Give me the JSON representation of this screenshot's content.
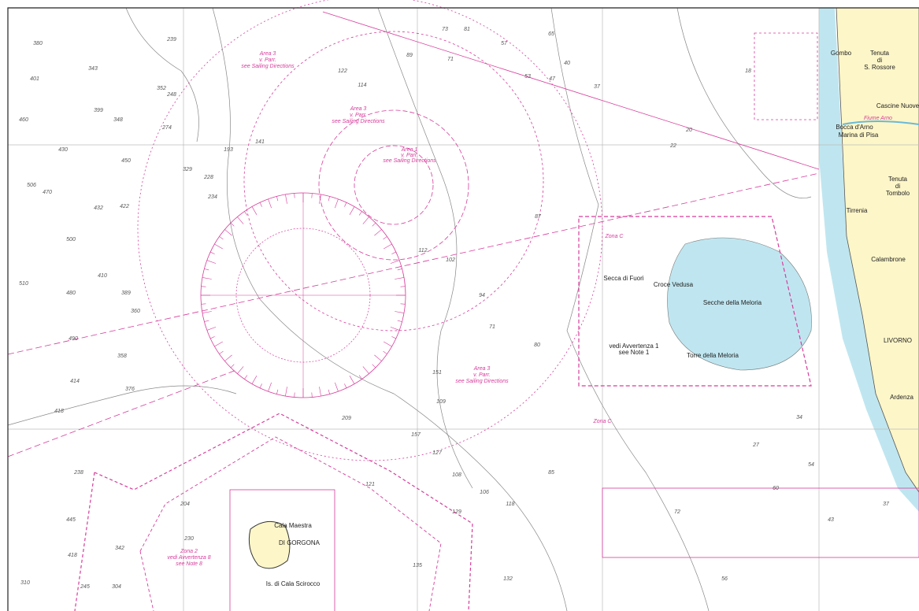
{
  "labels": [
    "Gombo",
    "Tenuta",
    "di",
    "S. Rossore",
    "Cascine Nuove",
    "Fiume Arno",
    "Bocca d'Arno",
    "Marina di Pisa",
    "Tenuta",
    "di",
    "Tombolo",
    "Tirrenia",
    "Calambrone",
    "LIVORNO",
    "Ardenza",
    "Secche della Meloria",
    "Torre della Meloria",
    "Secca di Fuori",
    "Croce Vedusa",
    "DI GORGONA",
    "Cala Maestra",
    "Is. di Cala Scirocco",
    "Area 3",
    "v. Parr.",
    "see Sailing Directions",
    "Area 3",
    "v. Parr.",
    "see Sailing Directions",
    "Area 1",
    "v. Parr.",
    "see Sailing Directions",
    "Area 3",
    "v. Parr.",
    "see Sailing Directions",
    "Zona 2",
    "vedi Avvertenza 8",
    "see Note 8",
    "Zona C",
    "Zona C",
    "vedi Avvertenza 1",
    "see Note 1"
  ],
  "soundings": [
    380,
    401,
    343,
    399,
    348,
    460,
    352,
    239,
    248,
    274,
    430,
    450,
    470,
    432,
    422,
    506,
    500,
    410,
    510,
    480,
    389,
    360,
    490,
    358,
    414,
    376,
    418,
    329,
    228,
    234,
    193,
    141,
    114,
    122,
    89,
    73,
    81,
    65,
    57,
    71,
    53,
    47,
    40,
    37,
    22,
    20,
    18,
    112,
    102,
    87,
    94,
    71,
    80,
    151,
    109,
    209,
    157,
    127,
    108,
    121,
    129,
    106,
    135,
    132,
    118,
    85,
    72,
    56,
    60,
    54,
    37,
    43,
    34,
    27,
    310,
    445,
    418,
    342,
    304,
    245,
    230,
    204,
    238
  ]
}
